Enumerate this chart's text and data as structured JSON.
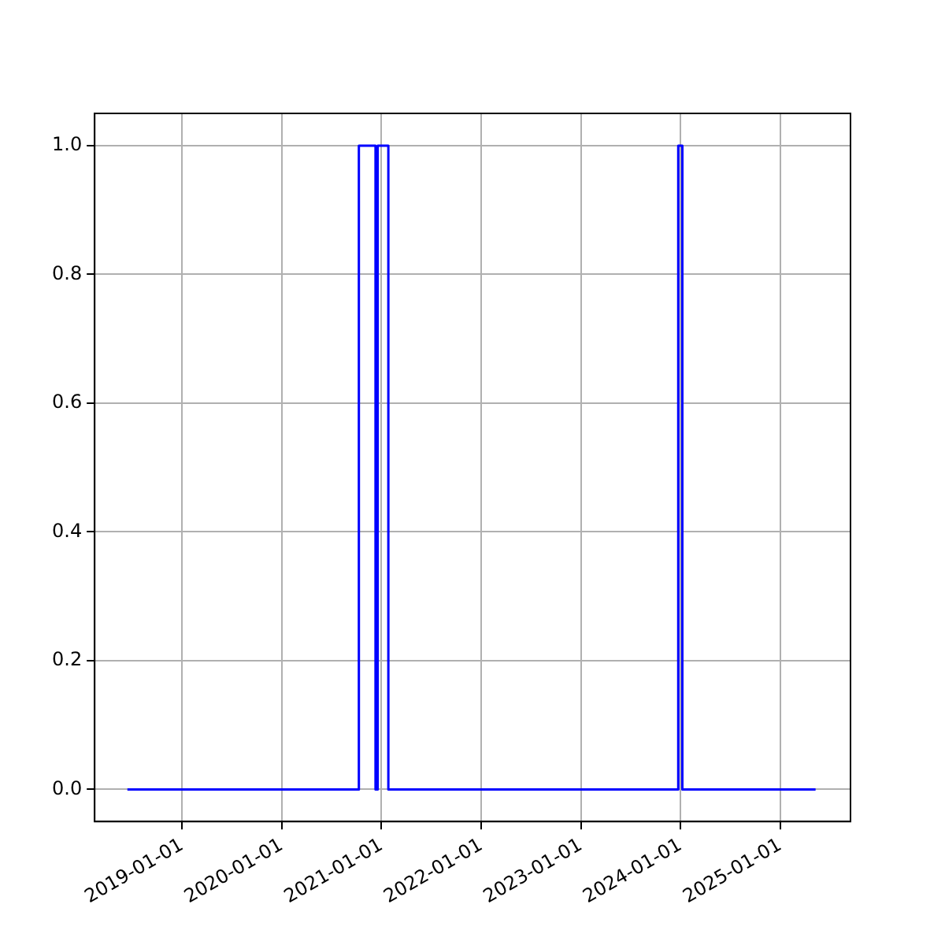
{
  "chart_data": {
    "type": "step",
    "x": [
      "2018-06-15",
      "2020-10-10",
      "2020-12-10",
      "2020-12-18",
      "2021-01-26",
      "2023-12-24",
      "2024-01-08",
      "2025-05-10"
    ],
    "series": [
      {
        "color": "#0000ff",
        "values": [
          0,
          1,
          0,
          1,
          0,
          1,
          0,
          0
        ]
      }
    ],
    "xlim": [
      "2018-02-15",
      "2025-09-15"
    ],
    "xticks": [
      "2019-01-01",
      "2020-01-01",
      "2021-01-01",
      "2022-01-01",
      "2023-01-01",
      "2024-01-01",
      "2025-01-01"
    ],
    "ylim": [
      -0.05,
      1.05
    ],
    "yticks": [
      {
        "value": 0,
        "label": "0.0"
      },
      {
        "value": 0.2,
        "label": "0.2"
      },
      {
        "value": 0.4,
        "label": "0.4"
      },
      {
        "value": 0.6,
        "label": "0.6"
      },
      {
        "value": 0.8,
        "label": "0.8"
      },
      {
        "value": 1,
        "label": "1.0"
      }
    ],
    "grid": true,
    "marker": "none",
    "line_style": "solid"
  }
}
